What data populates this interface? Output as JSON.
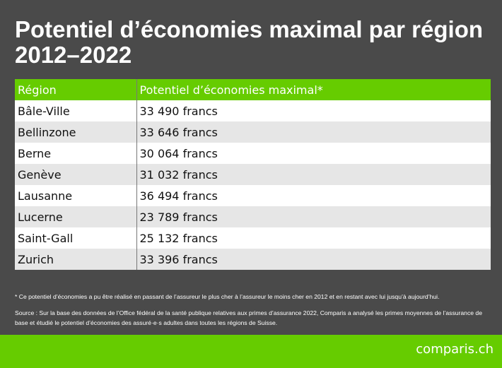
{
  "title": "Potentiel d’économies maximal par région 2012–2022",
  "chart_data": {
    "type": "table",
    "columns": [
      "Région",
      "Potentiel d’économies maximal*"
    ],
    "rows": [
      [
        "Bâle-Ville",
        "33 490 francs"
      ],
      [
        "Bellinzone",
        "33 646 francs"
      ],
      [
        "Berne",
        "30 064 francs"
      ],
      [
        "Genève",
        "31 032 francs"
      ],
      [
        "Lausanne",
        "36 494 francs"
      ],
      [
        "Lucerne",
        "23 789 francs"
      ],
      [
        "Saint-Gall",
        "25 132 francs"
      ],
      [
        "Zurich",
        "33 396 francs"
      ]
    ]
  },
  "footnote": "* Ce potentiel d’économies a pu être réalisé en passant de l’assureur le plus cher à l’assureur le moins cher en 2012 et en restant avec lui jusqu’à aujourd’hui.",
  "source": "Source : Sur la base des données de l’Office fédéral de la santé publique relatives aux primes d’assurance 2022, Comparis a analysé les primes moyennes de l’assurance de base et étudié le potentiel d’économies des assuré·e·s adultes dans toutes les régions de Suisse.",
  "logo": "comparis.ch",
  "colors": {
    "background": "#4a4a4a",
    "accent": "#66cc00"
  }
}
